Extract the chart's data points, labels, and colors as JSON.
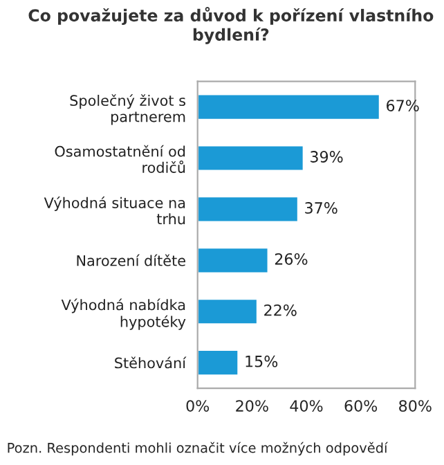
{
  "chart_data": {
    "type": "bar",
    "orientation": "horizontal",
    "title": "Co považujete za důvod k pořízení vlastního bydlení?",
    "categories": [
      "Společný život s\npartnerem",
      "Osamostatnění od\nrodičů",
      "Výhodná situace na\ntrhu",
      "Narození dítěte",
      "Výhodná nabídka\nhypotéky",
      "Stěhování"
    ],
    "values": [
      67,
      39,
      37,
      26,
      22,
      15
    ],
    "value_labels": [
      "67%",
      "39%",
      "37%",
      "26%",
      "22%",
      "15%"
    ],
    "color": "#1b9ad6",
    "xlim": [
      0,
      80
    ],
    "xticks": [
      {
        "value": 0,
        "label": "0%"
      },
      {
        "value": 20,
        "label": "20%"
      },
      {
        "value": 40,
        "label": "40%"
      },
      {
        "value": 60,
        "label": "60%"
      },
      {
        "value": 80,
        "label": "80%"
      }
    ],
    "grid": false,
    "annotations": [
      "Pozn. Respondenti mohli označit více možných odpovědí"
    ]
  }
}
